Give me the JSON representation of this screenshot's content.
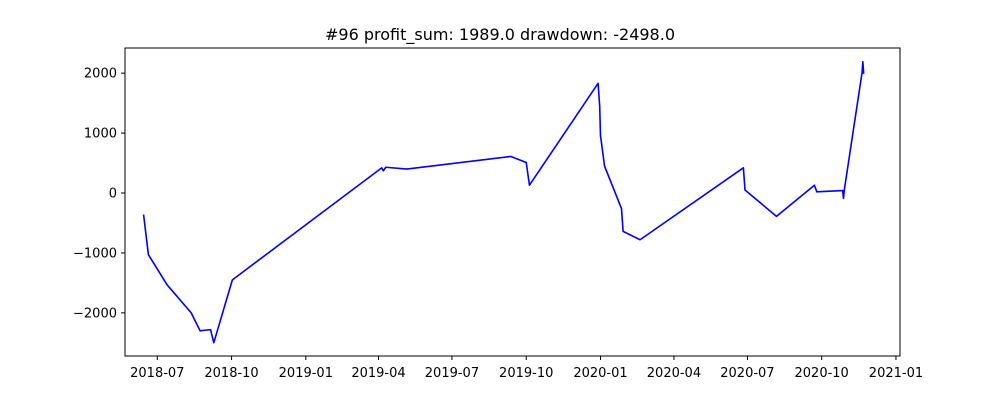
{
  "chart_data": {
    "type": "line",
    "title": "#96   profit_sum: 1989.0 drawdown: -2498.0",
    "xlabel": "",
    "ylabel": "",
    "xlim": [
      "2018-05-22",
      "2021-01-06"
    ],
    "ylim": [
      -2720,
      2420
    ],
    "grid": false,
    "legend": "none",
    "x_ticks": [
      "2018-07-01",
      "2018-10-01",
      "2019-01-01",
      "2019-04-01",
      "2019-07-01",
      "2019-10-01",
      "2020-01-01",
      "2020-04-01",
      "2020-07-01",
      "2020-10-01",
      "2021-01-01"
    ],
    "x_tick_labels": [
      "2018-07",
      "2018-10",
      "2019-01",
      "2019-04",
      "2019-07",
      "2019-10",
      "2020-01",
      "2020-04",
      "2020-07",
      "2020-10",
      "2021-01"
    ],
    "y_ticks": [
      -2000,
      -1000,
      0,
      1000,
      2000
    ],
    "y_tick_labels": [
      "−2000",
      "−1000",
      "0",
      "1000",
      "2000"
    ],
    "series": [
      {
        "color": "#0000ff",
        "x": [
          "2018-06-14",
          "2018-06-20",
          "2018-07-13",
          "2018-08-12",
          "2018-08-23",
          "2018-09-05",
          "2018-09-09",
          "2018-10-02",
          "2019-04-05",
          "2019-04-07",
          "2019-04-10",
          "2019-05-06",
          "2019-09-12",
          "2019-10-01",
          "2019-10-05",
          "2019-12-29",
          "2019-12-31",
          "2020-01-01",
          "2020-01-06",
          "2020-01-27",
          "2020-01-29",
          "2020-02-19",
          "2020-06-26",
          "2020-06-28",
          "2020-08-06",
          "2020-09-22",
          "2020-09-25",
          "2020-10-27",
          "2020-10-28",
          "2020-10-29",
          "2020-11-20",
          "2020-11-21",
          "2020-11-22"
        ],
        "y": [
          -360,
          -1030,
          -1530,
          -2000,
          -2300,
          -2280,
          -2498,
          -1450,
          420,
          370,
          430,
          400,
          610,
          510,
          130,
          1830,
          1450,
          960,
          450,
          -260,
          -640,
          -780,
          420,
          50,
          -390,
          130,
          20,
          40,
          -90,
          50,
          2010,
          2190,
          1989
        ]
      }
    ]
  }
}
